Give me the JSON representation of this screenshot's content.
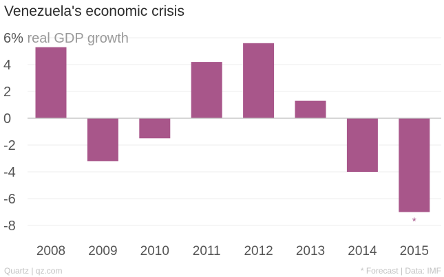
{
  "chart_data": {
    "type": "bar",
    "title": "Venezuela's economic crisis",
    "ylabel": "real GDP growth",
    "top_tick_label": "6%",
    "categories": [
      "2008",
      "2009",
      "2010",
      "2011",
      "2012",
      "2013",
      "2014",
      "2015"
    ],
    "values": [
      5.3,
      -3.2,
      -1.5,
      4.2,
      5.6,
      1.3,
      -4.0,
      -7.0
    ],
    "yticks": [
      6,
      4,
      2,
      0,
      -2,
      -4,
      -6,
      -8
    ],
    "ylim": [
      -8,
      6
    ],
    "forecast_marker": "*",
    "forecast_category": "2015",
    "color": "#a8568a"
  },
  "footer": {
    "source_left": "Quartz | qz.com",
    "note_right": "* Forecast | Data: IMF"
  }
}
